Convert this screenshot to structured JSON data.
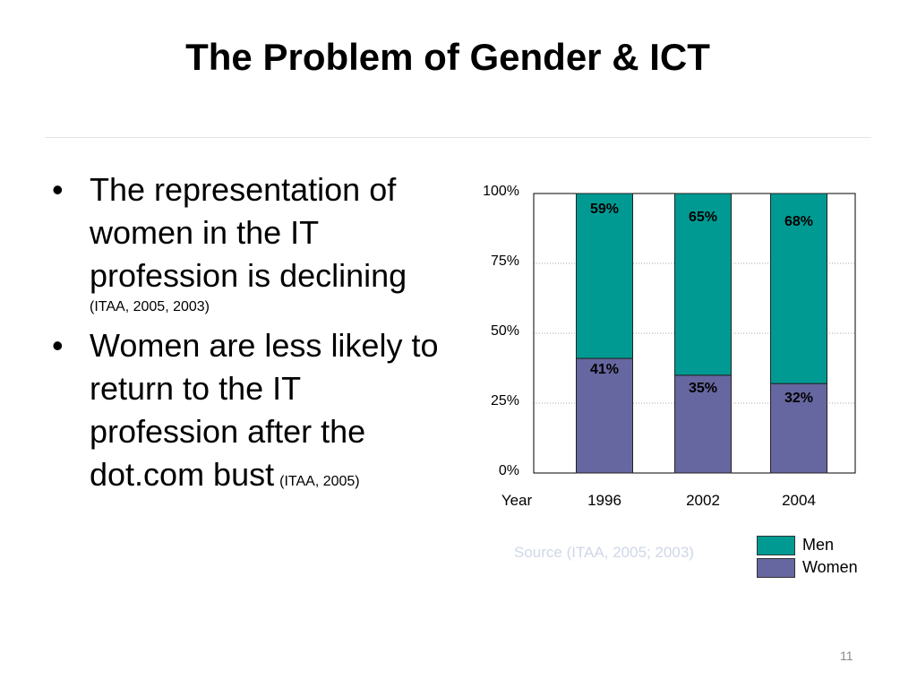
{
  "slide": {
    "title": "The Problem of Gender & ICT",
    "page_number": "11",
    "source_note": "Source (ITAA, 2005; 2003)"
  },
  "bullets": [
    {
      "text": "The representation of women in the IT profession is declining",
      "citation": "(ITAA, 2005, 2003)"
    },
    {
      "text": "Women are less likely to return to the IT profession after the dot.com bust",
      "citation": "(ITAA, 2005)"
    }
  ],
  "legend": {
    "men": {
      "label": "Men",
      "color": "#009a93"
    },
    "women": {
      "label": "Women",
      "color": "#6666a0"
    }
  },
  "chart_data": {
    "type": "bar",
    "stacked": true,
    "x_axis_label": "Year",
    "categories": [
      "1996",
      "2002",
      "2004"
    ],
    "y_ticks": [
      "0%",
      "25%",
      "50%",
      "75%",
      "100%"
    ],
    "ylim": [
      0,
      100
    ],
    "grid": true,
    "legend_position": "bottom-right",
    "series": [
      {
        "name": "Women",
        "values": [
          41,
          35,
          32
        ],
        "labels": [
          "41%",
          "35%",
          "32%"
        ],
        "color": "#6666a0"
      },
      {
        "name": "Men",
        "values": [
          59,
          65,
          68
        ],
        "labels": [
          "59%",
          "65%",
          "68%"
        ],
        "color": "#009a93"
      }
    ]
  }
}
